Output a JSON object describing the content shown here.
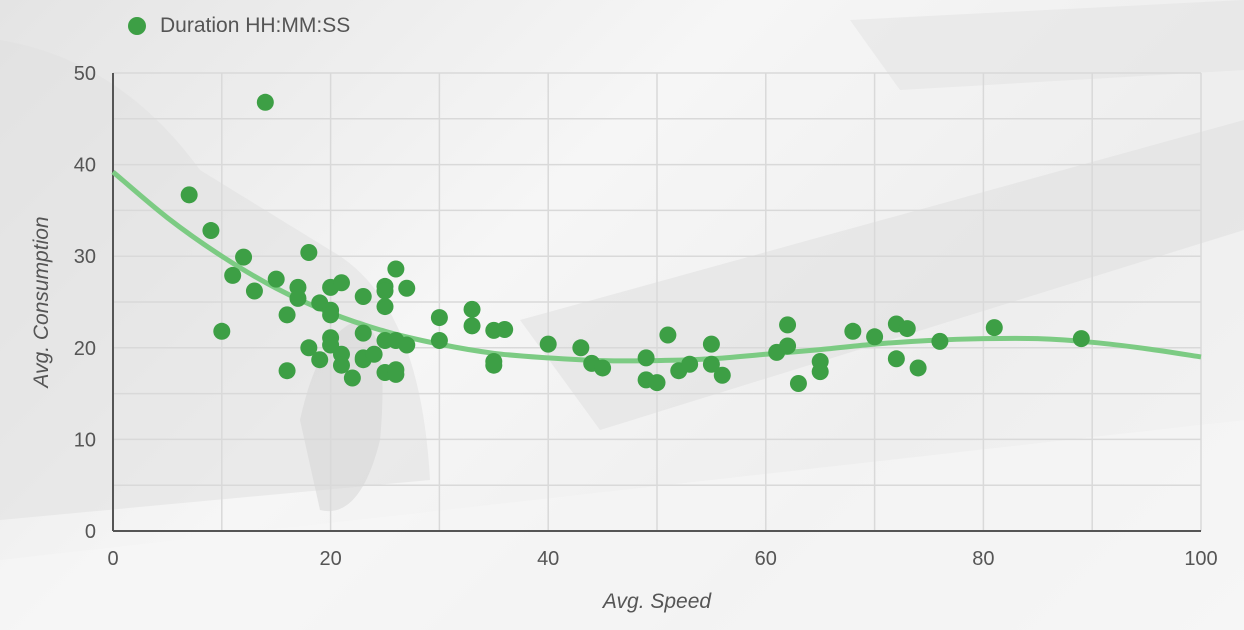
{
  "legend": {
    "label": "Duration HH:MM:SS"
  },
  "colors": {
    "point": "#3d9f45",
    "trend": "#7ccb83",
    "grid": "#d9d9d9",
    "axis": "#555555"
  },
  "chart_data": {
    "type": "scatter",
    "xlabel": "Avg. Speed",
    "ylabel": "Avg. Consumption",
    "xlim": [
      0,
      100
    ],
    "ylim": [
      0,
      50
    ],
    "xticks": [
      0,
      20,
      40,
      60,
      80,
      100
    ],
    "yticks": [
      0,
      10,
      20,
      30,
      40,
      50
    ],
    "grid": true,
    "legend_position": "top-left",
    "series": [
      {
        "name": "Duration HH:MM:SS",
        "points": [
          [
            7,
            36.7
          ],
          [
            9,
            32.8
          ],
          [
            10,
            21.8
          ],
          [
            11,
            27.9
          ],
          [
            12,
            29.9
          ],
          [
            13,
            26.2
          ],
          [
            14,
            46.8
          ],
          [
            15,
            27.5
          ],
          [
            16,
            23.6
          ],
          [
            16,
            17.5
          ],
          [
            17,
            26.6
          ],
          [
            17,
            25.4
          ],
          [
            18,
            30.4
          ],
          [
            18,
            20
          ],
          [
            19,
            24.9
          ],
          [
            19,
            18.7
          ],
          [
            20,
            26.6
          ],
          [
            20,
            24.1
          ],
          [
            20,
            23.6
          ],
          [
            20,
            21.1
          ],
          [
            20,
            20.3
          ],
          [
            21,
            27.1
          ],
          [
            21,
            19.3
          ],
          [
            21,
            18.1
          ],
          [
            22,
            16.7
          ],
          [
            23,
            25.6
          ],
          [
            23,
            21.6
          ],
          [
            23,
            18.9
          ],
          [
            23,
            18.7
          ],
          [
            24,
            19.3
          ],
          [
            25,
            26.7
          ],
          [
            25,
            26.2
          ],
          [
            25,
            24.5
          ],
          [
            25,
            20.8
          ],
          [
            25,
            17.3
          ],
          [
            26,
            28.6
          ],
          [
            26,
            20.8
          ],
          [
            26,
            17.6
          ],
          [
            26,
            17.1
          ],
          [
            27,
            26.5
          ],
          [
            27,
            20.3
          ],
          [
            30,
            23.3
          ],
          [
            30,
            20.8
          ],
          [
            33,
            24.2
          ],
          [
            33,
            22.4
          ],
          [
            35,
            21.9
          ],
          [
            35,
            18.5
          ],
          [
            35,
            18.1
          ],
          [
            36,
            22
          ],
          [
            40,
            20.4
          ],
          [
            43,
            20
          ],
          [
            44,
            18.3
          ],
          [
            45,
            17.8
          ],
          [
            49,
            18.9
          ],
          [
            49,
            16.5
          ],
          [
            50,
            16.2
          ],
          [
            51,
            21.4
          ],
          [
            52,
            17.5
          ],
          [
            53,
            18.2
          ],
          [
            55,
            20.4
          ],
          [
            55,
            18.2
          ],
          [
            56,
            17
          ],
          [
            61,
            19.5
          ],
          [
            62,
            22.5
          ],
          [
            62,
            20.2
          ],
          [
            63,
            16.1
          ],
          [
            65,
            18.5
          ],
          [
            65,
            17.4
          ],
          [
            68,
            21.8
          ],
          [
            70,
            21.2
          ],
          [
            72,
            22.6
          ],
          [
            72,
            18.8
          ],
          [
            73,
            22.1
          ],
          [
            74,
            17.8
          ],
          [
            76,
            20.7
          ],
          [
            81,
            22.2
          ],
          [
            89,
            21
          ]
        ]
      }
    ],
    "trendline": {
      "x": [
        0,
        5,
        10,
        15,
        20,
        25,
        30,
        35,
        40,
        45,
        50,
        55,
        60,
        65,
        70,
        75,
        80,
        85,
        90,
        95,
        100
      ],
      "y": [
        39.2,
        34.2,
        30,
        26.5,
        23.8,
        21.8,
        20.4,
        19.4,
        18.9,
        18.6,
        18.6,
        18.8,
        19.3,
        19.8,
        20.4,
        20.8,
        21,
        21,
        20.6,
        19.9,
        19
      ]
    }
  }
}
